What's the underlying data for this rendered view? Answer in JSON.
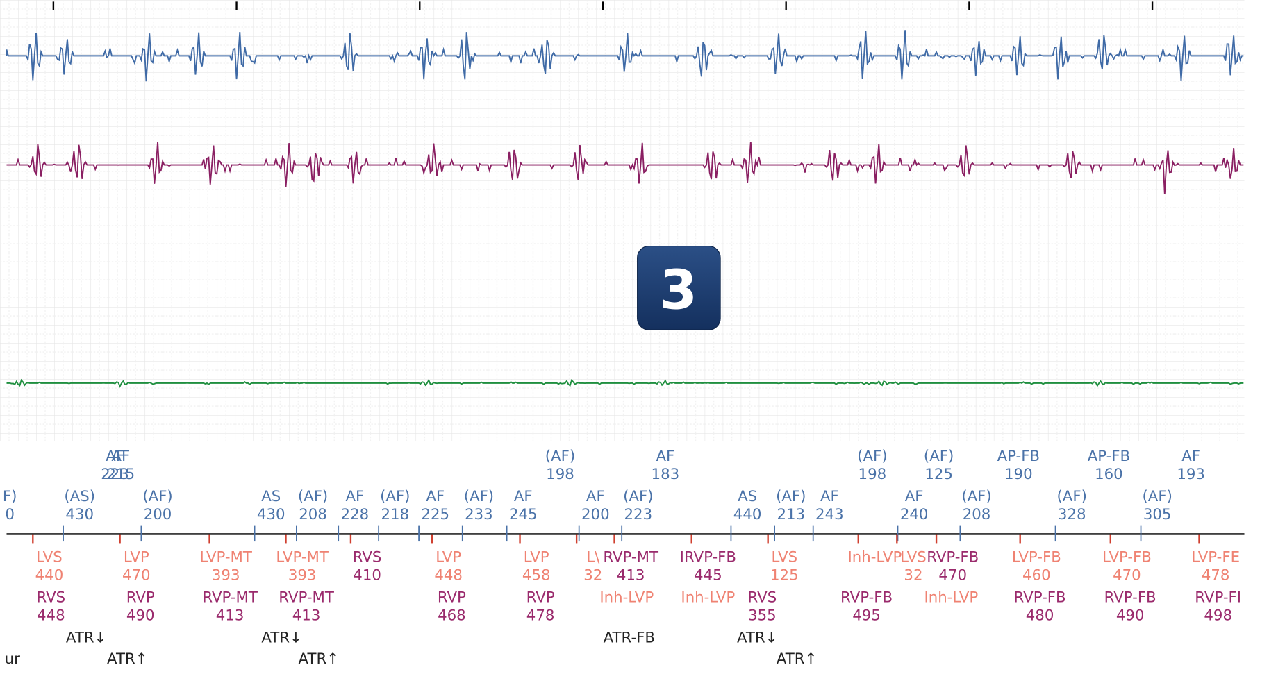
{
  "badge": "3",
  "atrial_upper": [
    {
      "label": "AF",
      "value": "223"
    },
    {
      "label": "AF",
      "value": "215"
    },
    {
      "label": "(AF)",
      "value": "198"
    },
    {
      "label": "AF",
      "value": "183"
    },
    {
      "label": "(AF)",
      "value": "198"
    },
    {
      "label": "(AF)",
      "value": "125"
    },
    {
      "label": "AP-FB",
      "value": "190"
    },
    {
      "label": "AP-FB",
      "value": "160"
    },
    {
      "label": "AF",
      "value": "193"
    }
  ],
  "atrial_lower": [
    {
      "label": "F)",
      "value": "0"
    },
    {
      "label": "(AS)",
      "value": "430"
    },
    {
      "label": "(AF)",
      "value": "200"
    },
    {
      "label": "AS",
      "value": "430"
    },
    {
      "label": "(AF)",
      "value": "208"
    },
    {
      "label": "AF",
      "value": "228"
    },
    {
      "label": "(AF)",
      "value": "218"
    },
    {
      "label": "AF",
      "value": "225"
    },
    {
      "label": "(AF)",
      "value": "233"
    },
    {
      "label": "AF",
      "value": "245"
    },
    {
      "label": "AF",
      "value": "200"
    },
    {
      "label": "(AF)",
      "value": "223"
    },
    {
      "label": "AS",
      "value": "440"
    },
    {
      "label": "(AF)",
      "value": "213"
    },
    {
      "label": "AF",
      "value": "243"
    },
    {
      "label": "AF",
      "value": "240"
    },
    {
      "label": "(AF)",
      "value": "208"
    },
    {
      "label": "(AF)",
      "value": "328"
    },
    {
      "label": "(AF)",
      "value": "305"
    }
  ],
  "ventricular_upper": [
    {
      "label": "LVS",
      "value": "440"
    },
    {
      "label": "LVP",
      "value": "470"
    },
    {
      "label": "LVP-MT",
      "value": "393"
    },
    {
      "label": "LVP-MT",
      "value": "393"
    },
    {
      "label": "RVS",
      "value": "410"
    },
    {
      "label": "LVP",
      "value": "448"
    },
    {
      "label": "LVP",
      "value": "458"
    },
    {
      "label": "L\\",
      "value": "32"
    },
    {
      "label": "RVP-MT",
      "value": "413"
    },
    {
      "label": "IRVP-FB",
      "value": "445"
    },
    {
      "label": "LVS",
      "value": "125"
    },
    {
      "label": "Inh-LVP",
      "value": ""
    },
    {
      "label": "LVS",
      "value": "32"
    },
    {
      "label": "RVP-FB",
      "value": "470"
    },
    {
      "label": "LVP-FB",
      "value": "460"
    },
    {
      "label": "LVP-FB",
      "value": "470"
    },
    {
      "label": "LVP-FE",
      "value": "478"
    }
  ],
  "ventricular_lower": [
    {
      "label": "RVS",
      "value": "448"
    },
    {
      "label": "RVP",
      "value": "490"
    },
    {
      "label": "RVP-MT",
      "value": "413"
    },
    {
      "label": "RVP-MT",
      "value": "413"
    },
    {
      "label": "RVP",
      "value": "468"
    },
    {
      "label": "RVP",
      "value": "478"
    },
    {
      "label": "Inh-LVP",
      "value": ""
    },
    {
      "label": "Inh-LVP",
      "value": ""
    },
    {
      "label": "RVS",
      "value": "355"
    },
    {
      "label": "RVP-FB",
      "value": "495"
    },
    {
      "label": "Inh-LVP",
      "value": ""
    },
    {
      "label": "RVP-FB",
      "value": "480"
    },
    {
      "label": "RVP-FB",
      "value": "490"
    },
    {
      "label": "RVP-FI",
      "value": "498"
    }
  ],
  "events": [
    "ATR↓",
    "ATR↑",
    "ATR↓",
    "ATR↑",
    "ATR-FB",
    "ATR↓",
    "ATR↑",
    "ur"
  ]
}
